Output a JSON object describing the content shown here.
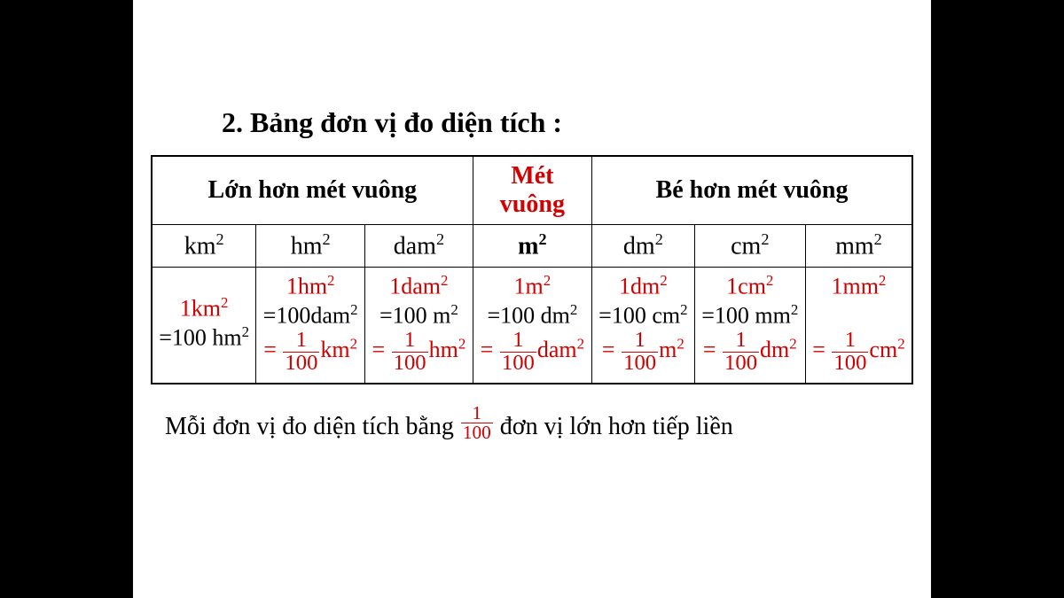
{
  "title": "2. Bảng đơn vị đo diện tích :",
  "headers": {
    "left": "Lớn hơn mét vuông",
    "center_l1": "Mét",
    "center_l2": "vuông",
    "right": "Bé hơn mét vuông"
  },
  "units": {
    "km": "km",
    "hm": "hm",
    "dam": "dam",
    "m": "m",
    "dm": "dm",
    "cm": "cm",
    "mm": "mm"
  },
  "exp": "2",
  "cells": {
    "km": {
      "top": "1km",
      "eq": "=100 hm",
      "frac_unit": ""
    },
    "hm": {
      "top": "1hm",
      "eq": "=100dam",
      "frac_unit": "km"
    },
    "dam": {
      "top": "1dam",
      "eq": "=100 m",
      "frac_unit": "hm"
    },
    "m": {
      "top": "1m",
      "eq": "=100 dm",
      "frac_unit": "dam"
    },
    "dm": {
      "top": "1dm",
      "eq": "=100 cm",
      "frac_unit": "m"
    },
    "cm": {
      "top": "1cm",
      "eq": "=100 mm",
      "frac_unit": "dm"
    },
    "mm": {
      "top": "1mm",
      "eq": "",
      "frac_unit": "cm"
    }
  },
  "frac": {
    "num": "1",
    "den": "100"
  },
  "footnote": {
    "pre": "Mỗi đơn vị đo diện tích bằng ",
    "post": " đơn vị  lớn hơn tiếp liền"
  },
  "colors": {
    "accent": "#d40000",
    "text": "#000000",
    "bg": "#ffffff",
    "outer": "#000000"
  }
}
